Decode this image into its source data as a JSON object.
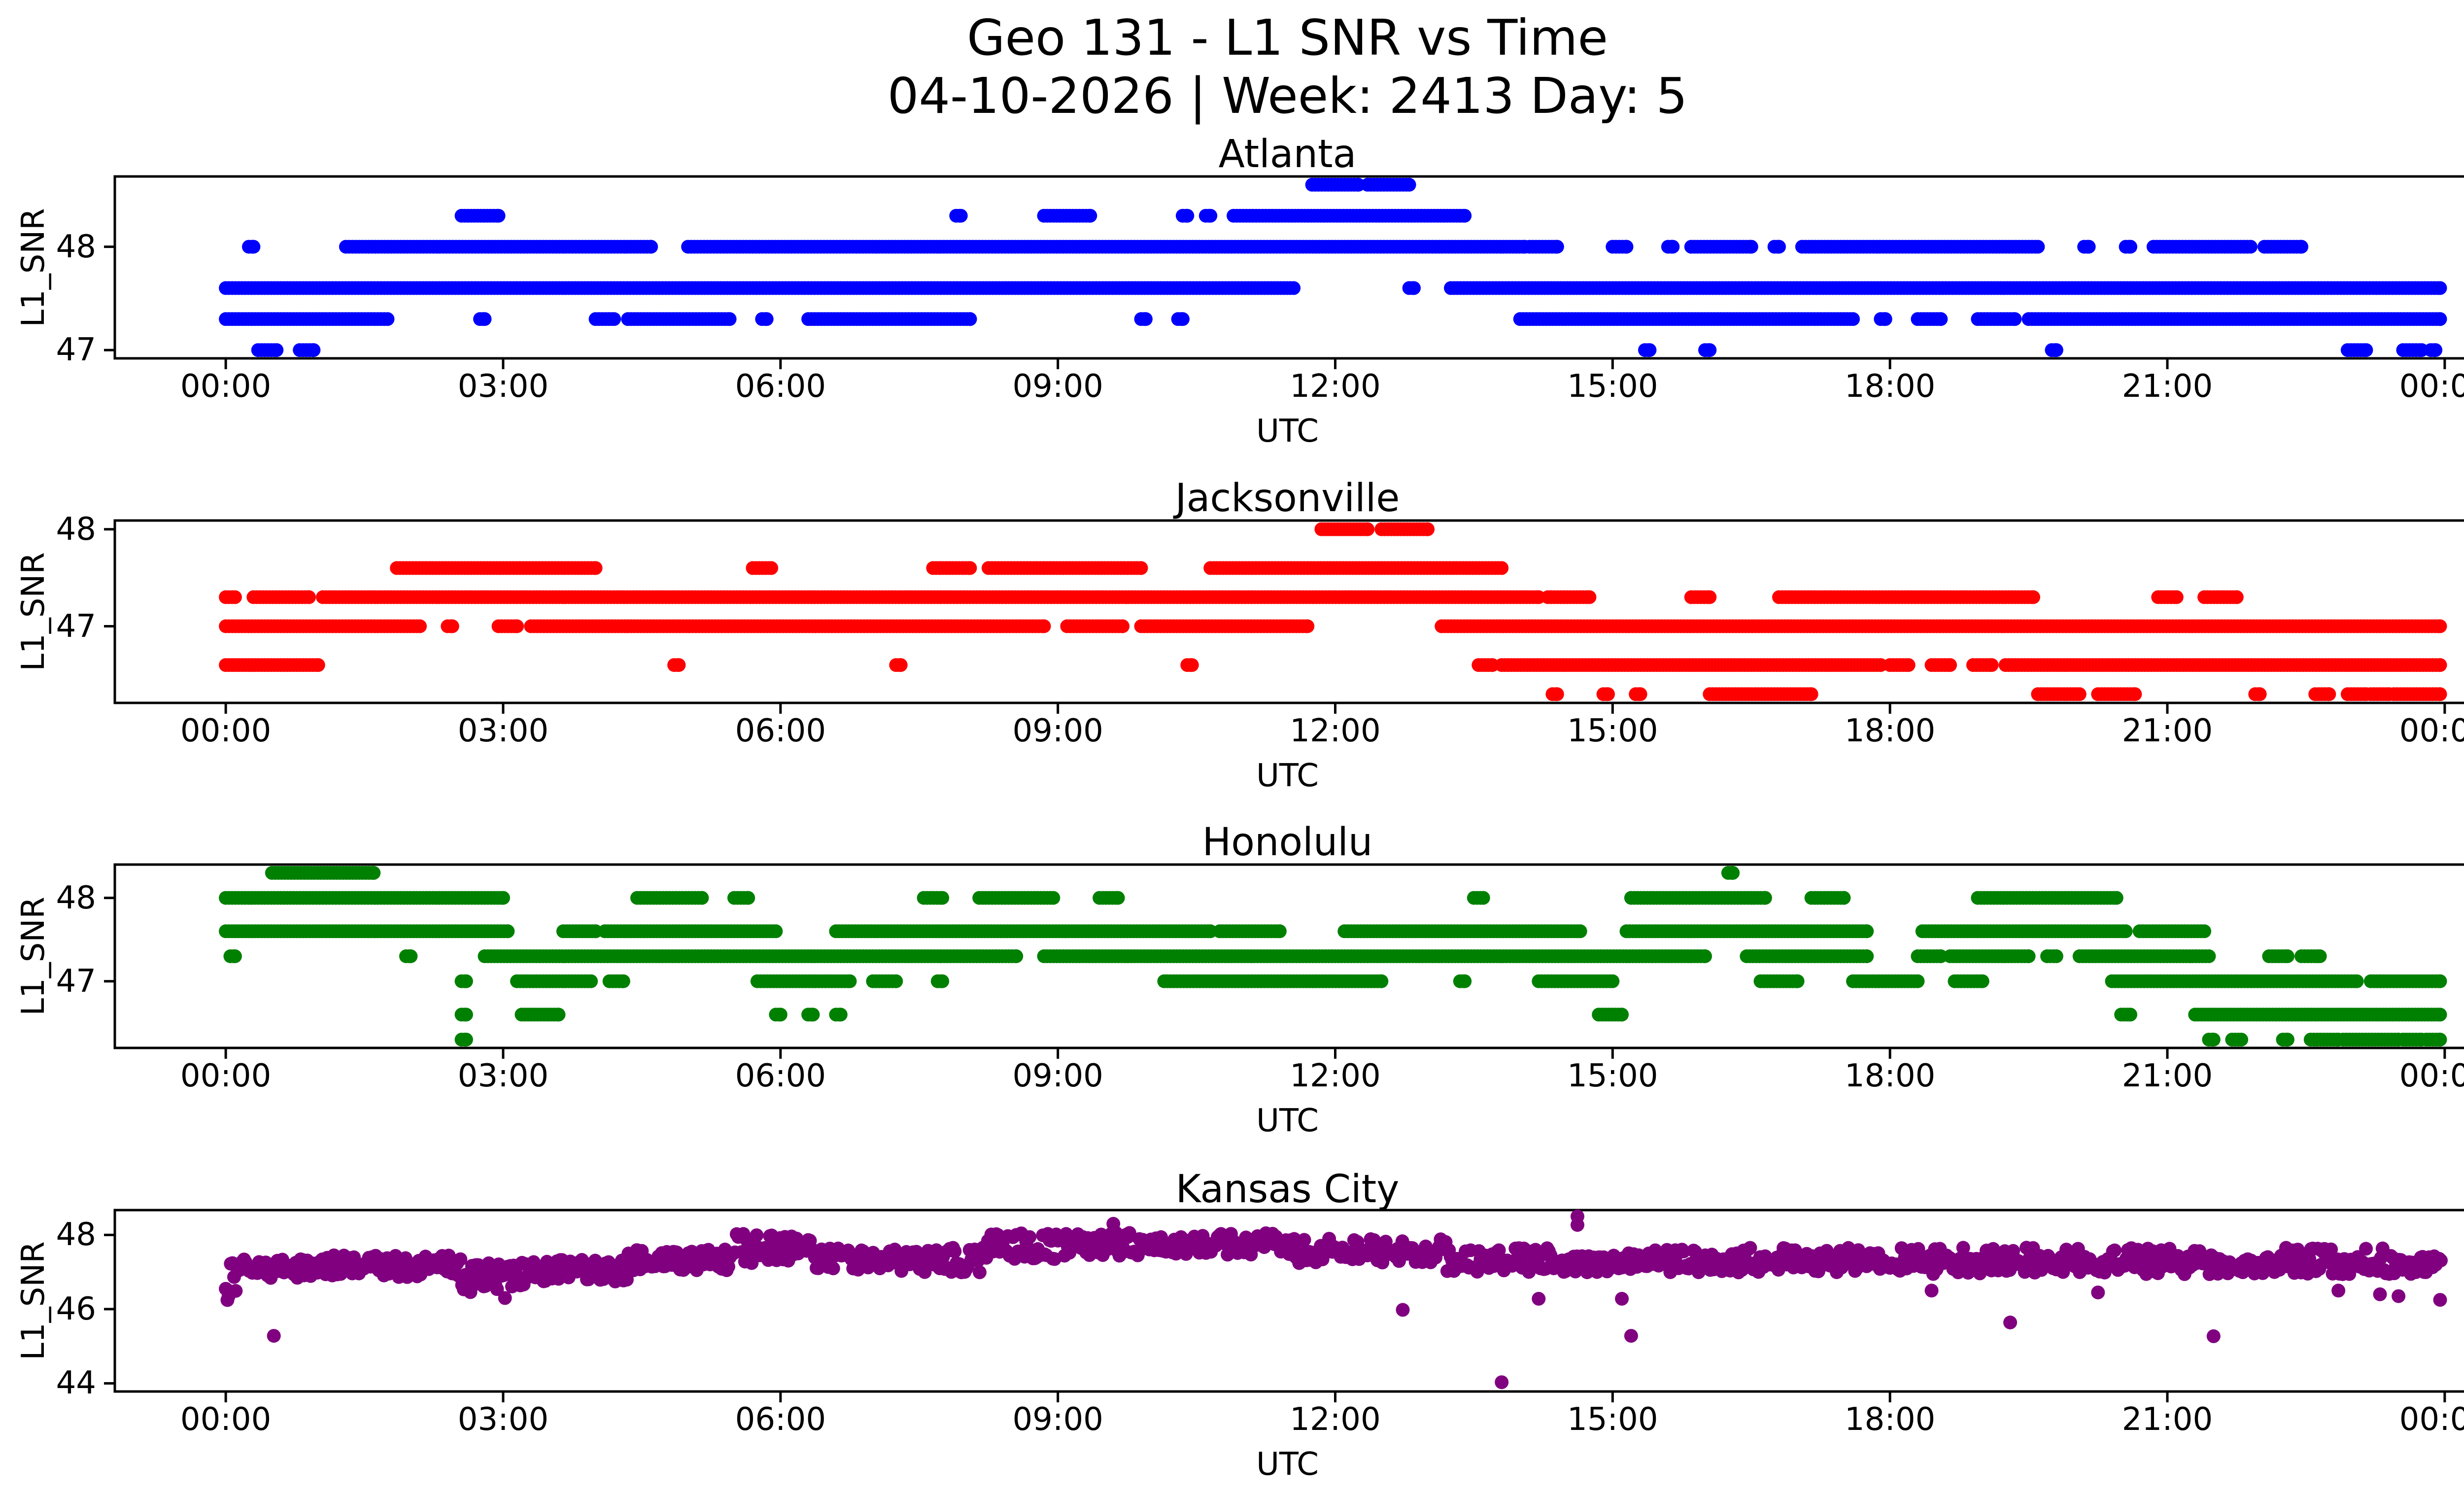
{
  "page": {
    "title_line1": "Geo 131 - L1 SNR vs Time",
    "title_line2": "04-10-2026 | Week: 2413 Day: 5"
  },
  "chart_data": [
    {
      "type": "scatter",
      "title": "Atlanta",
      "xlabel": "UTC",
      "ylabel": "L1_SNR",
      "color": "#0000ff",
      "xlim": [
        -1.2,
        25.2
      ],
      "ylim": [
        46.92,
        48.68
      ],
      "grid": false,
      "xticks": {
        "hours": [
          0,
          3,
          6,
          9,
          12,
          15,
          18,
          21,
          24
        ],
        "labels": [
          "00:00",
          "03:00",
          "06:00",
          "09:00",
          "12:00",
          "15:00",
          "18:00",
          "21:00",
          "00:00"
        ]
      },
      "yticks": [
        {
          "v": 48,
          "label": "48"
        },
        {
          "v": 47,
          "label": "47"
        }
      ],
      "bands": [
        {
          "snr": 48.6,
          "segments": [
            [
              11.75,
              12.25
            ],
            [
              12.35,
              12.8
            ]
          ]
        },
        {
          "snr": 48.3,
          "segments": [
            [
              2.55,
              2.95
            ],
            [
              7.9,
              7.95
            ],
            [
              8.85,
              9.35
            ],
            [
              10.35,
              10.4
            ],
            [
              10.6,
              10.65
            ],
            [
              10.9,
              13.4
            ]
          ]
        },
        {
          "snr": 48.0,
          "segments": [
            [
              0.25,
              0.3
            ],
            [
              1.3,
              4.6
            ],
            [
              5.0,
              14.05
            ],
            [
              14.1,
              14.4
            ],
            [
              15.0,
              15.15
            ],
            [
              15.6,
              15.65
            ],
            [
              15.85,
              16.5
            ],
            [
              16.75,
              16.8
            ],
            [
              17.05,
              19.6
            ],
            [
              20.1,
              20.15
            ],
            [
              20.55,
              20.6
            ],
            [
              20.85,
              21.9
            ],
            [
              22.05,
              22.45
            ]
          ]
        },
        {
          "snr": 47.6,
          "segments": [
            [
              0.0,
              11.55
            ],
            [
              12.8,
              12.85
            ],
            [
              13.25,
              23.95
            ]
          ]
        },
        {
          "snr": 47.3,
          "segments": [
            [
              0.0,
              1.75
            ],
            [
              2.75,
              2.8
            ],
            [
              4.0,
              4.2
            ],
            [
              4.35,
              5.45
            ],
            [
              5.8,
              5.85
            ],
            [
              6.3,
              8.05
            ],
            [
              9.9,
              9.95
            ],
            [
              10.3,
              10.35
            ],
            [
              14.0,
              17.6
            ],
            [
              17.9,
              17.95
            ],
            [
              18.3,
              18.55
            ],
            [
              18.95,
              19.35
            ],
            [
              19.5,
              23.95
            ]
          ]
        },
        {
          "snr": 47.0,
          "segments": [
            [
              0.35,
              0.55
            ],
            [
              0.8,
              0.95
            ],
            [
              15.35,
              15.4
            ],
            [
              16.0,
              16.05
            ],
            [
              19.75,
              19.8
            ],
            [
              22.95,
              23.15
            ],
            [
              23.55,
              23.75
            ],
            [
              23.85,
              23.9
            ]
          ]
        }
      ]
    },
    {
      "type": "scatter",
      "title": "Jacksonville",
      "xlabel": "UTC",
      "ylabel": "L1_SNR",
      "color": "#ff0000",
      "xlim": [
        -1.2,
        25.2
      ],
      "ylim": [
        46.21,
        48.09
      ],
      "grid": false,
      "xticks": {
        "hours": [
          0,
          3,
          6,
          9,
          12,
          15,
          18,
          21,
          24
        ],
        "labels": [
          "00:00",
          "03:00",
          "06:00",
          "09:00",
          "12:00",
          "15:00",
          "18:00",
          "21:00",
          "00:00"
        ]
      },
      "yticks": [
        {
          "v": 48,
          "label": "48"
        },
        {
          "v": 47,
          "label": "47"
        }
      ],
      "bands": [
        {
          "snr": 48.0,
          "segments": [
            [
              11.85,
              12.35
            ],
            [
              12.5,
              13.0
            ]
          ]
        },
        {
          "snr": 47.6,
          "segments": [
            [
              1.85,
              4.0
            ],
            [
              5.7,
              5.9
            ],
            [
              7.65,
              8.05
            ],
            [
              8.25,
              9.9
            ],
            [
              10.65,
              13.8
            ]
          ]
        },
        {
          "snr": 47.3,
          "segments": [
            [
              0.0,
              0.1
            ],
            [
              0.3,
              0.9
            ],
            [
              1.05,
              14.2
            ],
            [
              14.3,
              14.75
            ],
            [
              15.85,
              16.05
            ],
            [
              16.8,
              19.55
            ],
            [
              20.9,
              21.1
            ],
            [
              21.4,
              21.75
            ]
          ]
        },
        {
          "snr": 47.0,
          "segments": [
            [
              0.0,
              2.1
            ],
            [
              2.4,
              2.45
            ],
            [
              2.95,
              3.15
            ],
            [
              3.3,
              8.85
            ],
            [
              9.1,
              9.7
            ],
            [
              9.9,
              11.7
            ],
            [
              13.15,
              23.95
            ]
          ]
        },
        {
          "snr": 46.6,
          "segments": [
            [
              0.0,
              1.0
            ],
            [
              4.85,
              4.9
            ],
            [
              7.25,
              7.3
            ],
            [
              10.4,
              10.45
            ],
            [
              13.55,
              13.7
            ],
            [
              13.8,
              17.9
            ],
            [
              18.0,
              18.2
            ],
            [
              18.45,
              18.65
            ],
            [
              18.9,
              19.1
            ],
            [
              19.25,
              23.95
            ]
          ]
        },
        {
          "snr": 46.3,
          "segments": [
            [
              14.35,
              14.4
            ],
            [
              14.9,
              14.95
            ],
            [
              15.25,
              15.3
            ],
            [
              16.05,
              17.15
            ],
            [
              19.6,
              20.05
            ],
            [
              20.25,
              20.65
            ],
            [
              21.95,
              22.0
            ],
            [
              22.6,
              22.75
            ],
            [
              22.95,
              23.15
            ],
            [
              23.2,
              23.4
            ],
            [
              23.45,
              23.95
            ]
          ]
        }
      ]
    },
    {
      "type": "scatter",
      "title": "Honolulu",
      "xlabel": "UTC",
      "ylabel": "L1_SNR",
      "color": "#008000",
      "xlim": [
        -1.2,
        25.2
      ],
      "ylim": [
        46.2,
        48.4
      ],
      "grid": false,
      "xticks": {
        "hours": [
          0,
          3,
          6,
          9,
          12,
          15,
          18,
          21,
          24
        ],
        "labels": [
          "00:00",
          "03:00",
          "06:00",
          "09:00",
          "12:00",
          "15:00",
          "18:00",
          "21:00",
          "00:00"
        ]
      },
      "yticks": [
        {
          "v": 48,
          "label": "48"
        },
        {
          "v": 47,
          "label": "47"
        }
      ],
      "bands": [
        {
          "snr": 48.3,
          "segments": [
            [
              0.5,
              1.6
            ],
            [
              16.25,
              16.3
            ]
          ]
        },
        {
          "snr": 48.0,
          "segments": [
            [
              0.0,
              3.0
            ],
            [
              4.45,
              5.15
            ],
            [
              5.5,
              5.65
            ],
            [
              7.55,
              7.75
            ],
            [
              8.15,
              8.95
            ],
            [
              9.45,
              9.65
            ],
            [
              13.5,
              13.6
            ],
            [
              15.2,
              16.65
            ],
            [
              17.15,
              17.5
            ],
            [
              18.95,
              20.45
            ]
          ]
        },
        {
          "snr": 47.6,
          "segments": [
            [
              0.0,
              3.05
            ],
            [
              3.65,
              4.0
            ],
            [
              4.1,
              5.95
            ],
            [
              6.6,
              10.65
            ],
            [
              10.75,
              11.4
            ],
            [
              12.1,
              14.65
            ],
            [
              15.15,
              17.75
            ],
            [
              18.35,
              20.55
            ],
            [
              20.7,
              21.4
            ]
          ]
        },
        {
          "snr": 47.3,
          "segments": [
            [
              0.05,
              0.1
            ],
            [
              1.95,
              2.0
            ],
            [
              2.8,
              8.55
            ],
            [
              8.85,
              16.0
            ],
            [
              16.45,
              17.75
            ],
            [
              18.3,
              18.55
            ],
            [
              18.65,
              19.5
            ],
            [
              19.7,
              19.8
            ],
            [
              20.05,
              21.45
            ],
            [
              22.1,
              22.3
            ],
            [
              22.45,
              22.65
            ]
          ]
        },
        {
          "snr": 47.0,
          "segments": [
            [
              2.55,
              2.6
            ],
            [
              3.15,
              3.95
            ],
            [
              4.15,
              4.3
            ],
            [
              5.75,
              6.75
            ],
            [
              7.0,
              7.25
            ],
            [
              7.7,
              7.75
            ],
            [
              10.15,
              12.5
            ],
            [
              13.35,
              13.4
            ],
            [
              14.2,
              15.0
            ],
            [
              16.6,
              17.0
            ],
            [
              17.6,
              18.3
            ],
            [
              18.7,
              19.0
            ],
            [
              20.4,
              23.05
            ],
            [
              23.2,
              23.95
            ]
          ]
        },
        {
          "snr": 46.6,
          "segments": [
            [
              2.55,
              2.6
            ],
            [
              3.2,
              3.6
            ],
            [
              5.95,
              6.0
            ],
            [
              6.3,
              6.35
            ],
            [
              6.6,
              6.65
            ],
            [
              14.85,
              15.1
            ],
            [
              20.5,
              20.6
            ],
            [
              21.3,
              23.95
            ]
          ]
        },
        {
          "snr": 46.3,
          "segments": [
            [
              2.55,
              2.6
            ],
            [
              21.45,
              21.5
            ],
            [
              21.7,
              21.8
            ],
            [
              22.25,
              22.3
            ],
            [
              22.55,
              22.85
            ],
            [
              22.9,
              23.5
            ],
            [
              23.55,
              23.75
            ],
            [
              23.8,
              23.95
            ]
          ]
        }
      ]
    },
    {
      "type": "scatter",
      "title": "Kansas City",
      "xlabel": "UTC",
      "ylabel": "L1_SNR",
      "color": "#800080",
      "xlim": [
        -1.2,
        25.2
      ],
      "ylim": [
        43.78,
        48.67
      ],
      "grid": false,
      "xticks": {
        "hours": [
          0,
          3,
          6,
          9,
          12,
          15,
          18,
          21,
          24
        ],
        "labels": [
          "00:00",
          "03:00",
          "06:00",
          "09:00",
          "12:00",
          "15:00",
          "18:00",
          "21:00",
          "00:00"
        ]
      },
      "yticks": [
        {
          "v": 48,
          "label": "48"
        },
        {
          "v": 46,
          "label": "46"
        },
        {
          "v": 44,
          "label": "44"
        }
      ],
      "bands": [],
      "noise_profile": [
        {
          "t": [
            0.0,
            0.12
          ],
          "levels": [
            46.3,
            46.6,
            46.9,
            47.2,
            46.5
          ]
        },
        {
          "t": [
            0.12,
            1.0
          ],
          "levels": [
            47.0,
            47.2,
            46.9,
            47.3,
            47.1
          ]
        },
        {
          "t": [
            1.0,
            2.55
          ],
          "levels": [
            47.2,
            47.0,
            47.3,
            46.9,
            47.4,
            47.1
          ]
        },
        {
          "t": [
            2.55,
            3.3
          ],
          "levels": [
            46.9,
            46.6,
            47.2,
            46.5,
            47.0,
            46.7
          ]
        },
        {
          "t": [
            3.3,
            4.35
          ],
          "levels": [
            47.2,
            47.0,
            46.8,
            47.3,
            47.1
          ]
        },
        {
          "t": [
            4.35,
            5.5
          ],
          "levels": [
            47.3,
            47.45,
            47.2,
            47.55,
            47.1
          ]
        },
        {
          "t": [
            5.5,
            6.35
          ],
          "levels": [
            47.5,
            47.9,
            47.6,
            48.0,
            47.3,
            47.7
          ]
        },
        {
          "t": [
            6.35,
            7.05
          ],
          "levels": [
            47.45,
            47.3,
            47.6,
            47.1,
            47.5
          ]
        },
        {
          "t": [
            7.05,
            8.2
          ],
          "levels": [
            47.35,
            47.5,
            47.05,
            47.6,
            47.2
          ]
        },
        {
          "t": [
            8.2,
            9.0
          ],
          "levels": [
            47.6,
            47.85,
            47.5,
            48.0,
            47.4
          ]
        },
        {
          "t": [
            9.0,
            11.5
          ],
          "levels": [
            47.7,
            47.9,
            48.0,
            47.5,
            47.8,
            47.6
          ]
        },
        {
          "t": [
            11.5,
            13.2
          ],
          "levels": [
            47.5,
            47.65,
            47.3,
            47.85,
            47.4,
            47.6
          ]
        },
        {
          "t": [
            13.2,
            18.0
          ],
          "levels": [
            47.2,
            47.35,
            47.05,
            47.45,
            47.25,
            47.6,
            47.15
          ]
        },
        {
          "t": [
            18.0,
            24.0
          ],
          "levels": [
            47.25,
            47.1,
            47.4,
            47.0,
            47.3,
            47.6,
            47.2
          ]
        }
      ],
      "outliers": [
        [
          0.03,
          46.35
        ],
        [
          0.52,
          45.28
        ],
        [
          3.02,
          46.3
        ],
        [
          9.6,
          48.3
        ],
        [
          12.73,
          45.98
        ],
        [
          13.8,
          44.03
        ],
        [
          14.2,
          46.28
        ],
        [
          14.62,
          48.5
        ],
        [
          14.62,
          48.27
        ],
        [
          15.1,
          46.28
        ],
        [
          15.2,
          45.28
        ],
        [
          18.45,
          46.5
        ],
        [
          19.3,
          45.64
        ],
        [
          20.25,
          46.45
        ],
        [
          21.5,
          45.27
        ],
        [
          22.85,
          46.5
        ],
        [
          23.3,
          46.4
        ],
        [
          23.5,
          46.35
        ],
        [
          23.95,
          46.25
        ]
      ]
    }
  ]
}
